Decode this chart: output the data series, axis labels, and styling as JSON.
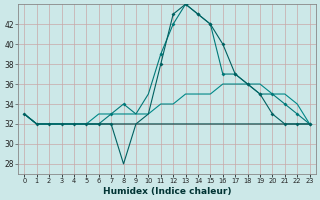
{
  "xlabel": "Humidex (Indice chaleur)",
  "x": [
    0,
    1,
    2,
    3,
    4,
    5,
    6,
    7,
    8,
    9,
    10,
    11,
    12,
    13,
    14,
    15,
    16,
    17,
    18,
    19,
    20,
    21,
    22,
    23
  ],
  "line1": [
    33,
    32,
    32,
    32,
    32,
    32,
    32,
    32,
    28,
    32,
    33,
    38,
    43,
    44,
    43,
    42,
    40,
    37,
    36,
    35,
    33,
    32,
    32,
    32
  ],
  "line2": [
    33,
    32,
    32,
    32,
    32,
    32,
    32,
    33,
    34,
    33,
    35,
    39,
    42,
    44,
    43,
    42,
    37,
    37,
    36,
    35,
    35,
    34,
    33,
    32
  ],
  "line3": [
    33,
    32,
    32,
    32,
    32,
    32,
    33,
    33,
    33,
    33,
    33,
    34,
    34,
    35,
    35,
    35,
    36,
    36,
    36,
    36,
    35,
    35,
    34,
    32
  ],
  "line4": [
    33,
    32,
    32,
    32,
    32,
    32,
    32,
    32,
    32,
    32,
    32,
    32,
    32,
    32,
    32,
    32,
    32,
    32,
    32,
    32,
    32,
    32,
    32,
    32
  ],
  "line1_markers": [
    0,
    1,
    2,
    3,
    4,
    5,
    6,
    7,
    11,
    12,
    13,
    14,
    15,
    16,
    17,
    18,
    19,
    20,
    21,
    22,
    23
  ],
  "line2_markers": [
    7,
    8,
    11,
    12,
    13,
    14,
    15,
    16,
    17,
    18,
    19,
    20,
    21,
    22,
    23
  ],
  "ylim": [
    27,
    44
  ],
  "xlim": [
    -0.5,
    23.5
  ],
  "yticks": [
    28,
    30,
    32,
    34,
    36,
    38,
    40,
    42
  ],
  "bg_color": "#cce8e8",
  "line_color1": "#006060",
  "line_color2": "#007878",
  "line_color3": "#008888",
  "line_color4": "#004444",
  "grid_color": "#b8d8d8"
}
